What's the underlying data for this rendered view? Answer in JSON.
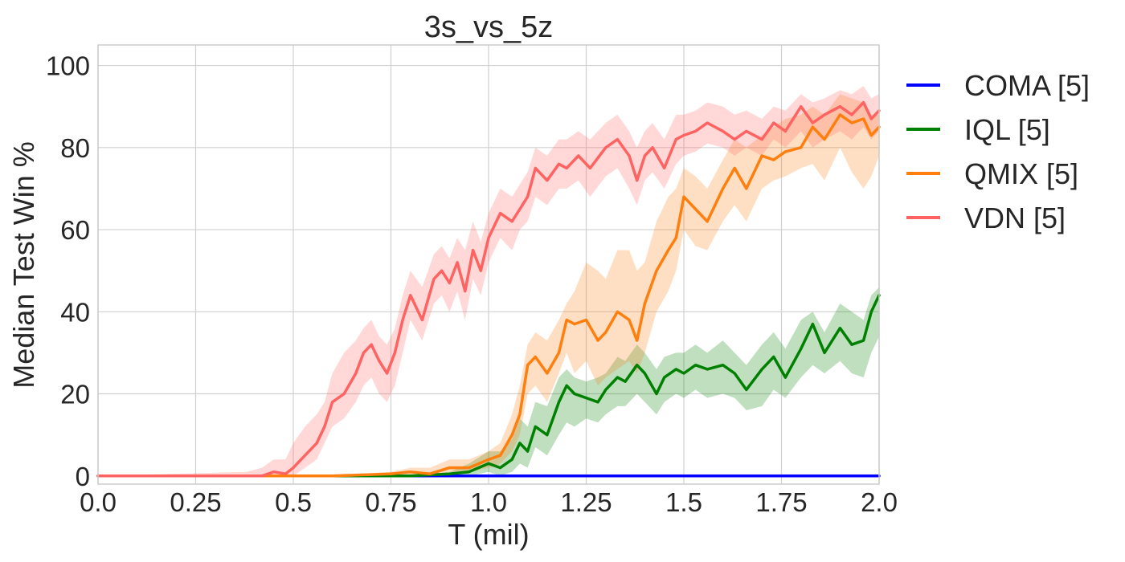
{
  "chart_data": {
    "type": "line",
    "title": "3s_vs_5z",
    "xlabel": "T (mil)",
    "ylabel": "Median Test Win %",
    "xlim": [
      0.0,
      2.0
    ],
    "ylim": [
      -2,
      105
    ],
    "xticks": [
      "0.0",
      "0.25",
      "0.5",
      "0.75",
      "1.0",
      "1.25",
      "1.5",
      "1.75",
      "2.0"
    ],
    "xtick_values": [
      0.0,
      0.25,
      0.5,
      0.75,
      1.0,
      1.25,
      1.5,
      1.75,
      2.0
    ],
    "yticks": [
      "0",
      "20",
      "40",
      "60",
      "80",
      "100"
    ],
    "ytick_values": [
      0,
      20,
      40,
      60,
      80,
      100
    ],
    "grid": true,
    "legend_position": "outside-right",
    "series": [
      {
        "name": "COMA [5]",
        "color": "#0000ff",
        "x": [
          0.0,
          0.25,
          0.5,
          0.75,
          1.0,
          1.25,
          1.5,
          1.75,
          2.0
        ],
        "values": [
          0,
          0,
          0,
          0,
          0,
          0,
          0,
          0,
          0
        ],
        "lower": [
          0,
          0,
          0,
          0,
          0,
          0,
          0,
          0,
          0
        ],
        "upper": [
          0,
          0,
          0,
          0,
          0,
          0,
          0,
          0,
          0
        ]
      },
      {
        "name": "IQL [5]",
        "color": "#008000",
        "x": [
          0.0,
          0.5,
          0.8,
          0.9,
          0.95,
          1.0,
          1.03,
          1.06,
          1.08,
          1.1,
          1.12,
          1.15,
          1.18,
          1.2,
          1.22,
          1.25,
          1.28,
          1.3,
          1.33,
          1.35,
          1.38,
          1.4,
          1.43,
          1.45,
          1.48,
          1.5,
          1.53,
          1.56,
          1.6,
          1.63,
          1.66,
          1.7,
          1.73,
          1.76,
          1.8,
          1.83,
          1.86,
          1.9,
          1.93,
          1.96,
          1.98,
          2.0
        ],
        "values": [
          0,
          0,
          0,
          0.5,
          1,
          3,
          2,
          4,
          8,
          6,
          12,
          10,
          18,
          22,
          20,
          19,
          18,
          21,
          24,
          23,
          27,
          25,
          20,
          24,
          26,
          25,
          27,
          26,
          27,
          25,
          21,
          26,
          29,
          24,
          31,
          37,
          30,
          36,
          32,
          33,
          40,
          44
        ],
        "lower": [
          0,
          0,
          0,
          0,
          0,
          1,
          0,
          1,
          3,
          2,
          7,
          5,
          10,
          13,
          12,
          14,
          13,
          15,
          17,
          17,
          20,
          18,
          15,
          18,
          20,
          19,
          21,
          19,
          20,
          19,
          16,
          17,
          21,
          19,
          24,
          27,
          25,
          28,
          25,
          24,
          30,
          34
        ],
        "upper": [
          0,
          0,
          0,
          1,
          3,
          6,
          6,
          9,
          14,
          12,
          18,
          17,
          24,
          26,
          24,
          23,
          24,
          25,
          29,
          28,
          32,
          30,
          26,
          29,
          30,
          30,
          32,
          30,
          33,
          30,
          27,
          32,
          35,
          31,
          38,
          40,
          35,
          42,
          40,
          38,
          44,
          46
        ]
      },
      {
        "name": "QMIX [5]",
        "color": "#ff7f0e",
        "x": [
          0.0,
          0.6,
          0.75,
          0.8,
          0.85,
          0.9,
          0.95,
          1.0,
          1.03,
          1.06,
          1.08,
          1.1,
          1.12,
          1.15,
          1.18,
          1.2,
          1.22,
          1.25,
          1.28,
          1.3,
          1.33,
          1.36,
          1.38,
          1.4,
          1.43,
          1.46,
          1.48,
          1.5,
          1.53,
          1.56,
          1.6,
          1.63,
          1.66,
          1.7,
          1.73,
          1.76,
          1.8,
          1.83,
          1.86,
          1.9,
          1.93,
          1.96,
          1.98,
          2.0
        ],
        "values": [
          0,
          0,
          0.5,
          1,
          0.5,
          2,
          2,
          4,
          5,
          10,
          15,
          27,
          29,
          25,
          30,
          38,
          37,
          38,
          33,
          35,
          40,
          38,
          33,
          42,
          50,
          55,
          58,
          68,
          65,
          62,
          70,
          75,
          70,
          78,
          77,
          79,
          80,
          85,
          82,
          88,
          86,
          87,
          83,
          85
        ],
        "lower": [
          0,
          0,
          0,
          0,
          0,
          1,
          1,
          2,
          3,
          6,
          10,
          20,
          22,
          18,
          25,
          30,
          25,
          28,
          22,
          24,
          26,
          28,
          25,
          30,
          40,
          45,
          50,
          60,
          56,
          55,
          62,
          66,
          62,
          70,
          72,
          73,
          75,
          76,
          72,
          80,
          74,
          70,
          73,
          78
        ],
        "upper": [
          0,
          0,
          1,
          2,
          2,
          4,
          4,
          6,
          8,
          15,
          22,
          32,
          35,
          33,
          38,
          42,
          45,
          52,
          50,
          48,
          55,
          55,
          50,
          52,
          62,
          68,
          70,
          75,
          73,
          70,
          77,
          82,
          80,
          83,
          85,
          87,
          88,
          90,
          88,
          93,
          92,
          91,
          88,
          88
        ]
      },
      {
        "name": "VDN [5]",
        "color": "#ff6361",
        "x": [
          0.0,
          0.38,
          0.42,
          0.45,
          0.48,
          0.5,
          0.53,
          0.56,
          0.58,
          0.6,
          0.63,
          0.66,
          0.68,
          0.7,
          0.72,
          0.74,
          0.76,
          0.78,
          0.8,
          0.83,
          0.86,
          0.88,
          0.9,
          0.92,
          0.94,
          0.96,
          0.98,
          1.0,
          1.03,
          1.06,
          1.08,
          1.1,
          1.12,
          1.15,
          1.18,
          1.2,
          1.23,
          1.26,
          1.3,
          1.33,
          1.36,
          1.38,
          1.4,
          1.42,
          1.45,
          1.48,
          1.5,
          1.53,
          1.56,
          1.6,
          1.63,
          1.66,
          1.7,
          1.73,
          1.76,
          1.8,
          1.83,
          1.86,
          1.9,
          1.93,
          1.96,
          1.98,
          2.0
        ],
        "values": [
          0,
          0,
          0,
          1,
          0.5,
          2,
          5,
          8,
          12,
          18,
          20,
          25,
          30,
          32,
          28,
          25,
          30,
          38,
          44,
          38,
          48,
          50,
          47,
          52,
          45,
          55,
          50,
          58,
          64,
          62,
          65,
          68,
          75,
          72,
          76,
          75,
          78,
          75,
          80,
          82,
          78,
          72,
          78,
          80,
          75,
          82,
          83,
          84,
          86,
          84,
          82,
          84,
          82,
          86,
          84,
          90,
          86,
          88,
          90,
          88,
          91,
          87,
          89
        ],
        "lower": [
          0,
          0,
          0,
          0,
          0,
          0,
          2,
          4,
          8,
          12,
          14,
          18,
          22,
          24,
          20,
          18,
          22,
          30,
          38,
          33,
          42,
          44,
          40,
          45,
          38,
          48,
          44,
          52,
          58,
          55,
          60,
          62,
          68,
          66,
          70,
          70,
          72,
          68,
          73,
          75,
          70,
          66,
          72,
          74,
          70,
          76,
          78,
          79,
          81,
          80,
          78,
          80,
          78,
          82,
          80,
          84,
          80,
          82,
          84,
          82,
          85,
          82,
          84
        ],
        "upper": [
          0,
          1,
          2,
          4,
          4,
          8,
          12,
          15,
          18,
          25,
          30,
          33,
          36,
          38,
          34,
          32,
          36,
          44,
          50,
          46,
          54,
          56,
          53,
          58,
          55,
          62,
          57,
          64,
          70,
          68,
          71,
          74,
          80,
          78,
          82,
          82,
          84,
          82,
          86,
          88,
          84,
          80,
          84,
          86,
          82,
          88,
          88,
          89,
          91,
          90,
          88,
          89,
          87,
          90,
          89,
          93,
          91,
          92,
          94,
          93,
          95,
          92,
          93
        ]
      }
    ]
  }
}
